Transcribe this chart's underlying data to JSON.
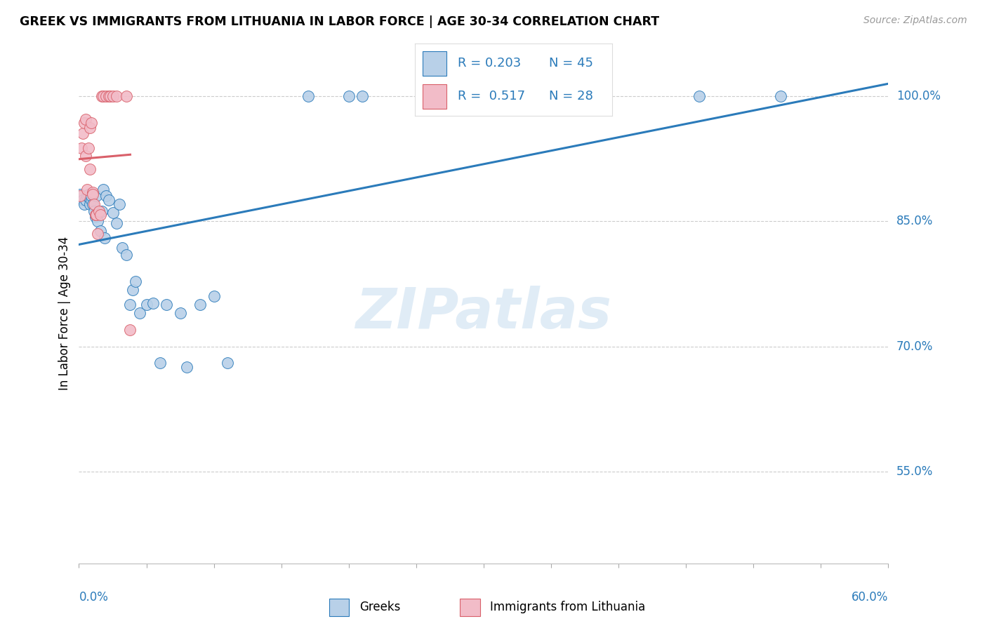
{
  "title": "GREEK VS IMMIGRANTS FROM LITHUANIA IN LABOR FORCE | AGE 30-34 CORRELATION CHART",
  "source": "Source: ZipAtlas.com",
  "ylabel": "In Labor Force | Age 30-34",
  "xlim": [
    0.0,
    0.6
  ],
  "ylim": [
    0.44,
    1.04
  ],
  "legend_r_blue": "0.203",
  "legend_n_blue": "45",
  "legend_r_pink": "0.517",
  "legend_n_pink": "28",
  "blue_color": "#b8d0e8",
  "pink_color": "#f2bcc8",
  "blue_line_color": "#2B7BBA",
  "pink_line_color": "#d9606a",
  "watermark_text": "ZIPatlas",
  "blue_scatter_x": [
    0.001,
    0.003,
    0.004,
    0.005,
    0.006,
    0.007,
    0.008,
    0.008,
    0.009,
    0.009,
    0.01,
    0.011,
    0.012,
    0.013,
    0.014,
    0.015,
    0.016,
    0.017,
    0.018,
    0.019,
    0.02,
    0.022,
    0.025,
    0.028,
    0.03,
    0.032,
    0.035,
    0.038,
    0.04,
    0.042,
    0.045,
    0.05,
    0.055,
    0.06,
    0.065,
    0.075,
    0.08,
    0.09,
    0.1,
    0.11,
    0.17,
    0.2,
    0.21,
    0.46,
    0.52
  ],
  "blue_scatter_y": [
    0.882,
    0.875,
    0.87,
    0.875,
    0.88,
    0.882,
    0.876,
    0.87,
    0.875,
    0.88,
    0.87,
    0.862,
    0.855,
    0.88,
    0.85,
    0.86,
    0.838,
    0.862,
    0.888,
    0.83,
    0.88,
    0.875,
    0.86,
    0.848,
    0.87,
    0.818,
    0.81,
    0.75,
    0.768,
    0.778,
    0.74,
    0.75,
    0.752,
    0.68,
    0.75,
    0.74,
    0.675,
    0.75,
    0.76,
    0.68,
    1.0,
    1.0,
    1.0,
    1.0,
    1.0
  ],
  "pink_scatter_x": [
    0.001,
    0.002,
    0.003,
    0.004,
    0.005,
    0.005,
    0.006,
    0.007,
    0.008,
    0.008,
    0.009,
    0.01,
    0.01,
    0.011,
    0.012,
    0.013,
    0.014,
    0.015,
    0.016,
    0.017,
    0.018,
    0.02,
    0.022,
    0.023,
    0.025,
    0.028,
    0.035,
    0.038
  ],
  "pink_scatter_y": [
    0.88,
    0.938,
    0.955,
    0.968,
    0.928,
    0.972,
    0.888,
    0.938,
    0.962,
    0.912,
    0.968,
    0.885,
    0.882,
    0.87,
    0.858,
    0.858,
    0.835,
    0.862,
    0.858,
    1.0,
    1.0,
    1.0,
    1.0,
    1.0,
    1.0,
    1.0,
    1.0,
    0.72
  ]
}
